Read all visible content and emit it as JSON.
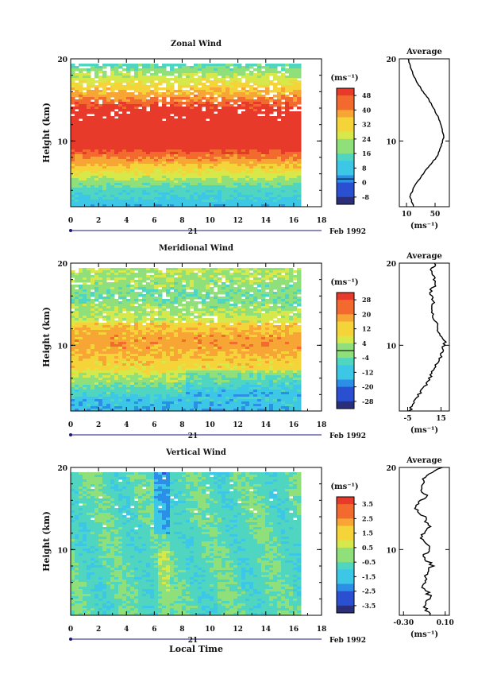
{
  "chart_data": [
    {
      "type": "heatmap",
      "title": "Zonal Wind",
      "ylabel": "Height (km)",
      "ylim": [
        2,
        20
      ],
      "xlim": [
        0,
        18
      ],
      "x_ticks": [
        "0",
        "2",
        "4",
        "6",
        "8",
        "10",
        "12",
        "14",
        "16",
        "18"
      ],
      "y_ticks": [
        "20",
        "10"
      ],
      "date_label": "21",
      "month_label": "Feb 1992",
      "unit_label": "(ms⁻¹)",
      "colorbar_levels": [
        "48",
        "40",
        "32",
        "24",
        "16",
        "8",
        "0",
        "-8"
      ],
      "colorbar_range": [
        -12,
        52
      ],
      "profile_values": [
        20,
        15,
        20,
        30,
        40,
        52,
        58,
        62,
        60,
        55,
        48,
        40,
        30,
        22,
        16,
        12
      ]
    },
    {
      "type": "heatmap",
      "title": "Meridional Wind",
      "ylabel": "Height (km)",
      "ylim": [
        2,
        20
      ],
      "xlim": [
        0,
        18
      ],
      "x_ticks": [
        "0",
        "2",
        "4",
        "6",
        "8",
        "10",
        "12",
        "14",
        "16",
        "18"
      ],
      "y_ticks": [
        "20",
        "10"
      ],
      "date_label": "21",
      "month_label": "Feb 1992",
      "unit_label": "(ms⁻¹)",
      "colorbar_levels": [
        "28",
        "20",
        "12",
        "4",
        "-4",
        "-12",
        "-20",
        "-28"
      ],
      "colorbar_range": [
        -32,
        32
      ],
      "profile_values": [
        -4,
        -1,
        3,
        7,
        10,
        13,
        16,
        17,
        14,
        12,
        9,
        11,
        8,
        12,
        9,
        11
      ]
    },
    {
      "type": "heatmap",
      "title": "Vertical Wind",
      "ylabel": "Height (km)",
      "ylim": [
        2,
        20
      ],
      "xlim": [
        0,
        18
      ],
      "x_ticks": [
        "0",
        "2",
        "4",
        "6",
        "8",
        "10",
        "12",
        "14",
        "16",
        "18"
      ],
      "y_ticks": [
        "20",
        "10"
      ],
      "date_label": "21",
      "month_label": "Feb 1992",
      "unit_label": "(ms⁻¹)",
      "colorbar_levels": [
        "3.5",
        "2.5",
        "1.5",
        "0.5",
        "-0.5",
        "-1.5",
        "-2.5",
        "-3.5"
      ],
      "colorbar_range": [
        -4,
        4
      ],
      "xlabel": "Local Time",
      "profile_values": [
        -0.06,
        -0.1,
        -0.05,
        -0.12,
        -0.08,
        -0.03,
        -0.1,
        -0.05,
        -0.14,
        -0.06,
        -0.1,
        -0.2,
        -0.08,
        -0.15,
        -0.1,
        0.05
      ]
    }
  ],
  "average_panels": [
    {
      "title": "Average",
      "xticks": [
        "10",
        "50"
      ],
      "xrange": [
        0,
        70
      ],
      "tick_values": [
        10,
        50
      ],
      "yticks": [
        "20",
        "10"
      ],
      "unit_label": "(ms⁻¹)"
    },
    {
      "title": "Average",
      "xticks": [
        "-5",
        "15"
      ],
      "xrange": [
        -10,
        20
      ],
      "tick_values": [
        -5,
        15
      ],
      "yticks": [
        "20",
        "10"
      ],
      "unit_label": "(ms⁻¹)"
    },
    {
      "title": "Average",
      "xticks": [
        "-0.30",
        "0.10"
      ],
      "xrange": [
        -0.34,
        0.14
      ],
      "tick_values": [
        -0.3,
        0.1
      ],
      "yticks": [
        "20",
        "10"
      ],
      "unit_label": "(ms⁻¹)"
    }
  ],
  "colors": {
    "scale": [
      "#2b2f7a",
      "#2a4fd0",
      "#2b8fe8",
      "#3cc7e6",
      "#50d6c0",
      "#8fe07a",
      "#d7e84a",
      "#f5d43a",
      "#f7a535",
      "#f36a2e",
      "#e83a2a"
    ]
  }
}
